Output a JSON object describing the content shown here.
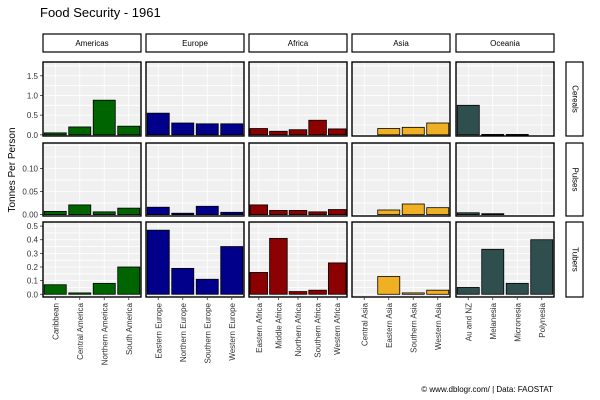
{
  "title": "Food Security - 1961",
  "caption": "© www.dblogr.com/  |  Data: FAOSTAT",
  "colors": {
    "Americas": "#006400",
    "Europe": "#00008b",
    "Africa": "#8b0000",
    "Asia": "#f0b023",
    "Oceania": "#2f4f4f",
    "panel_bg": "#f0f0f0",
    "grid": "#ffffff"
  },
  "chart_data": {
    "type": "bar",
    "facet_layout": "grid",
    "title": "Food Security - 1961",
    "ylabel": "Tonnes Per Person",
    "xlabel": "",
    "columns": [
      "Americas",
      "Europe",
      "Africa",
      "Asia",
      "Oceania"
    ],
    "rows": [
      {
        "name": "Cereals",
        "ylim": [
          -0.03,
          1.85
        ],
        "ticks": [
          0.0,
          0.5,
          1.0,
          1.5
        ],
        "tick_labels": [
          "0.0",
          "0.5",
          "1.0",
          "1.5"
        ]
      },
      {
        "name": "Pulses",
        "ylim": [
          -0.003,
          0.155
        ],
        "ticks": [
          0.0,
          0.05,
          0.1
        ],
        "tick_labels": [
          "0.00",
          "0.05",
          "0.10"
        ]
      },
      {
        "name": "Tubers",
        "ylim": [
          -0.02,
          0.53
        ],
        "ticks": [
          0.0,
          0.1,
          0.2,
          0.3,
          0.4,
          0.5
        ],
        "tick_labels": [
          "0.0",
          "0.1",
          "0.2",
          "0.3",
          "0.4",
          "0.5"
        ]
      }
    ],
    "categories": {
      "Americas": [
        "Caribbean",
        "Central America",
        "Northern America",
        "South America"
      ],
      "Europe": [
        "Eastern Europe",
        "Northern Europe",
        "Southern Europe",
        "Western Europe"
      ],
      "Africa": [
        "Eastern Africa",
        "Middle Africa",
        "Northern Africa",
        "Southern Africa",
        "Western Africa"
      ],
      "Asia": [
        "Central Asia",
        "Eastern Asia",
        "Southern Asia",
        "Western Asia"
      ],
      "Oceania": [
        "Au and NZ",
        "Melanesia",
        "Micronesia",
        "Polynesia"
      ]
    },
    "values": {
      "Cereals": {
        "Americas": [
          0.05,
          0.2,
          0.88,
          0.22
        ],
        "Europe": [
          0.55,
          0.3,
          0.28,
          0.28
        ],
        "Africa": [
          0.16,
          0.09,
          0.13,
          0.37,
          0.15
        ],
        "Asia": [
          null,
          0.16,
          0.19,
          0.3
        ],
        "Oceania": [
          0.75,
          0.01,
          0.01,
          null
        ]
      },
      "Pulses": {
        "Americas": [
          0.007,
          0.021,
          0.006,
          0.014
        ],
        "Europe": [
          0.016,
          0.003,
          0.018,
          0.005
        ],
        "Africa": [
          0.021,
          0.009,
          0.009,
          0.006,
          0.011
        ],
        "Asia": [
          null,
          0.01,
          0.023,
          0.015
        ],
        "Oceania": [
          0.004,
          0.002,
          null,
          null
        ]
      },
      "Tubers": {
        "Americas": [
          0.07,
          0.01,
          0.08,
          0.2
        ],
        "Europe": [
          0.47,
          0.19,
          0.11,
          0.35
        ],
        "Africa": [
          0.16,
          0.41,
          0.02,
          0.03,
          0.23
        ],
        "Asia": [
          null,
          0.13,
          0.01,
          0.03
        ],
        "Oceania": [
          0.05,
          0.33,
          0.08,
          0.4
        ]
      }
    }
  }
}
